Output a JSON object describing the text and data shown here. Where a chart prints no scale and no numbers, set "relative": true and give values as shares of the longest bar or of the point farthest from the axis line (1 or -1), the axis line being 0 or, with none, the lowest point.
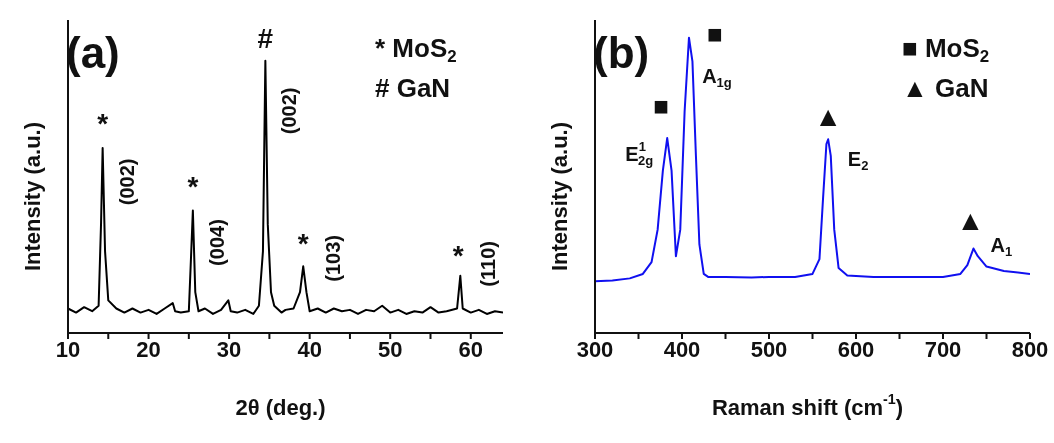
{
  "chart_data": [
    {
      "type": "line",
      "title": "(a)",
      "xlabel": "2θ (deg.)",
      "ylabel": "Intensity (a.u.)",
      "relative": true,
      "xlim": [
        10,
        64
      ],
      "xticks": [
        10,
        {
          "value": 15,
          "label": null
        },
        20,
        {
          "value": 25,
          "label": null
        },
        30,
        {
          "value": 35,
          "label": null
        },
        40,
        {
          "value": 45,
          "label": null
        },
        50,
        {
          "value": 55,
          "label": null
        },
        60
      ],
      "series": [
        {
          "color": "#000000",
          "x": [
            10,
            11,
            12,
            13,
            13.8,
            14.1,
            14.3,
            14.6,
            15,
            16,
            17,
            18,
            19,
            20,
            21,
            22,
            23,
            23.3,
            24,
            25,
            25.3,
            25.5,
            25.8,
            26.2,
            27,
            28,
            29,
            29.9,
            30.2,
            31,
            32,
            33,
            33.7,
            34.2,
            34.5,
            34.8,
            35.2,
            35.6,
            36.5,
            37,
            38,
            38.8,
            39.2,
            39.6,
            40,
            41,
            42,
            43,
            44,
            45,
            46,
            47,
            48,
            49,
            50,
            51,
            52,
            53,
            54,
            55,
            56,
            57,
            58.3,
            58.7,
            59,
            60,
            61,
            62,
            63,
            64
          ],
          "values": [
            0.09,
            0.075,
            0.095,
            0.08,
            0.1,
            0.4,
            0.68,
            0.3,
            0.12,
            0.09,
            0.075,
            0.09,
            0.075,
            0.085,
            0.07,
            0.09,
            0.11,
            0.08,
            0.075,
            0.08,
            0.3,
            0.45,
            0.15,
            0.08,
            0.09,
            0.07,
            0.085,
            0.12,
            0.08,
            0.075,
            0.085,
            0.07,
            0.1,
            0.3,
            1.0,
            0.4,
            0.15,
            0.1,
            0.075,
            0.085,
            0.09,
            0.15,
            0.245,
            0.15,
            0.08,
            0.09,
            0.075,
            0.09,
            0.08,
            0.085,
            0.07,
            0.085,
            0.08,
            0.1,
            0.075,
            0.085,
            0.07,
            0.08,
            0.075,
            0.095,
            0.075,
            0.08,
            0.09,
            0.21,
            0.09,
            0.075,
            0.085,
            0.07,
            0.08,
            0.075
          ]
        }
      ],
      "annotations": [
        "* MoS$_{2}$",
        "# GaN",
        {
          "text": "*",
          "x": 14.3,
          "y": 0.68
        },
        {
          "text": "(002)",
          "x": 14.3,
          "y": 0.68
        },
        {
          "text": "*",
          "x": 25.5,
          "y": 0.45
        },
        {
          "text": "(004)",
          "x": 25.5,
          "y": 0.45
        },
        {
          "text": "#",
          "x": 34.5,
          "y": 1.0
        },
        {
          "text": "(002)",
          "x": 34.5,
          "y": 1.0
        },
        {
          "text": "*",
          "x": 39.2,
          "y": 0.245
        },
        {
          "text": "(103)",
          "x": 39.2,
          "y": 0.245
        },
        {
          "text": "*",
          "x": 58.7,
          "y": 0.21
        },
        {
          "text": "(110)",
          "x": 58.7,
          "y": 0.21
        }
      ]
    },
    {
      "type": "line",
      "title": "(b)",
      "xlabel": "Raman shift (cm$^{-1}$)",
      "ylabel": "Intensity (a.u.)",
      "relative": true,
      "xlim": [
        300,
        800
      ],
      "xticks": [
        300,
        {
          "value": 350,
          "label": null
        },
        400,
        {
          "value": 450,
          "label": null
        },
        500,
        {
          "value": 550,
          "label": null
        },
        600,
        {
          "value": 650,
          "label": null
        },
        700,
        {
          "value": 750,
          "label": null
        },
        800
      ],
      "series": [
        {
          "color": "#1010f0",
          "x": [
            300,
            320,
            340,
            355,
            365,
            372,
            378,
            383,
            388,
            393,
            398,
            403,
            408,
            412,
            416,
            420,
            425,
            430,
            450,
            480,
            500,
            530,
            550,
            558,
            562,
            566,
            568,
            571,
            575,
            580,
            590,
            620,
            660,
            700,
            720,
            728,
            735,
            740,
            750,
            770,
            800
          ],
          "values": [
            0.175,
            0.178,
            0.185,
            0.2,
            0.24,
            0.35,
            0.55,
            0.66,
            0.55,
            0.26,
            0.35,
            0.75,
            1.0,
            0.92,
            0.6,
            0.3,
            0.2,
            0.19,
            0.19,
            0.188,
            0.19,
            0.19,
            0.2,
            0.25,
            0.45,
            0.64,
            0.656,
            0.6,
            0.35,
            0.22,
            0.195,
            0.19,
            0.19,
            0.19,
            0.2,
            0.23,
            0.286,
            0.26,
            0.225,
            0.21,
            0.2
          ]
        }
      ],
      "annotations": [
        "■ MoS$_{2}$",
        "▲ GaN",
        {
          "text": "■",
          "x": 383,
          "y": 0.66
        },
        {
          "text": "E$^{1}$$_{2g}$",
          "x": 383,
          "y": 0.66
        },
        {
          "text": "■",
          "x": 408,
          "y": 1.0
        },
        {
          "text": "A$_{1g}$",
          "x": 408,
          "y": 1.0
        },
        {
          "text": "▲",
          "x": 568,
          "y": 0.656
        },
        {
          "text": "E$_{2}$",
          "x": 568,
          "y": 0.656
        },
        {
          "text": "▲",
          "x": 735,
          "y": 0.286
        },
        {
          "text": "A$_{1}$",
          "x": 735,
          "y": 0.286
        }
      ]
    }
  ]
}
